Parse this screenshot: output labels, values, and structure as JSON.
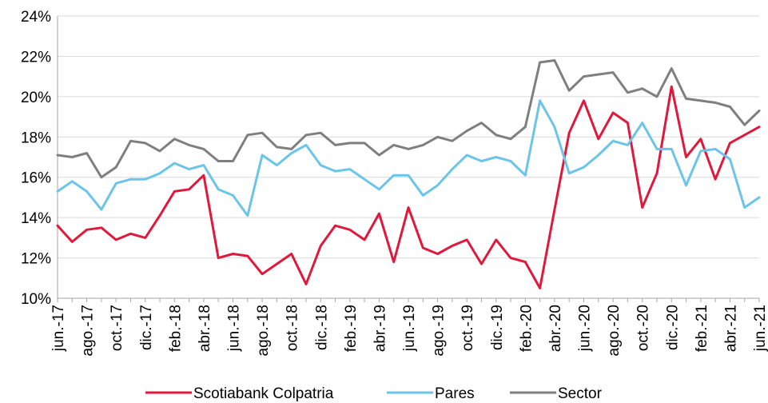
{
  "chart_data": {
    "type": "line",
    "title": "",
    "xlabel": "",
    "ylabel": "",
    "ylim": [
      0.1,
      0.24
    ],
    "y_ticks": [
      "10%",
      "12%",
      "14%",
      "16%",
      "18%",
      "20%",
      "22%",
      "24%"
    ],
    "x": [
      "jun.-17",
      "jul.-17",
      "ago.-17",
      "sep.-17",
      "oct.-17",
      "nov.-17",
      "dic.-17",
      "ene.-18",
      "feb.-18",
      "mar.-18",
      "abr.-18",
      "may.-18",
      "jun.-18",
      "jul.-18",
      "ago.-18",
      "sep.-18",
      "oct.-18",
      "nov.-18",
      "dic.-18",
      "ene.-19",
      "feb.-19",
      "mar.-19",
      "abr.-19",
      "may.-19",
      "jun.-19",
      "jul.-19",
      "ago.-19",
      "sep.-19",
      "oct.-19",
      "nov.-19",
      "dic.-19",
      "ene.-20",
      "feb.-20",
      "mar.-20",
      "abr.-20",
      "may.-20",
      "jun.-20",
      "jul.-20",
      "ago.-20",
      "sep.-20",
      "oct.-20",
      "nov.-20",
      "dic.-20",
      "ene.-21",
      "feb.-21",
      "mar.-21",
      "abr.-21",
      "may.-21",
      "jun.-21"
    ],
    "x_tick_labels": [
      "jun.-17",
      "ago.-17",
      "oct.-17",
      "dic.-17",
      "feb.-18",
      "abr.-18",
      "jun.-18",
      "ago.-18",
      "oct.-18",
      "dic.-18",
      "feb.-19",
      "abr.-19",
      "jun.-19",
      "ago.-19",
      "oct.-19",
      "dic.-19",
      "feb.-20",
      "abr.-20",
      "jun.-20",
      "ago.-20",
      "oct.-20",
      "dic.-20",
      "feb.-21",
      "abr.-21",
      "jun.-21"
    ],
    "legend_position": "bottom",
    "grid": "horizontal",
    "series": [
      {
        "name": "Scotiabank Colpatria",
        "color": "#e0183c",
        "values": [
          0.136,
          0.128,
          0.134,
          0.135,
          0.129,
          0.132,
          0.13,
          0.141,
          0.153,
          0.154,
          0.161,
          0.12,
          0.122,
          0.121,
          0.112,
          0.117,
          0.122,
          0.107,
          0.126,
          0.136,
          0.134,
          0.129,
          0.142,
          0.118,
          0.145,
          0.125,
          0.122,
          0.126,
          0.129,
          0.117,
          0.129,
          0.12,
          0.118,
          0.105,
          0.144,
          0.182,
          0.198,
          0.179,
          0.192,
          0.187,
          0.145,
          0.162,
          0.205,
          0.17,
          0.179,
          0.159,
          0.177,
          0.181,
          0.185
        ]
      },
      {
        "name": "Pares",
        "color": "#6ac5e9",
        "values": [
          0.153,
          0.158,
          0.153,
          0.144,
          0.157,
          0.159,
          0.159,
          0.162,
          0.167,
          0.164,
          0.166,
          0.154,
          0.151,
          0.141,
          0.171,
          0.166,
          0.172,
          0.176,
          0.166,
          0.163,
          0.164,
          0.159,
          0.154,
          0.161,
          0.161,
          0.151,
          0.156,
          0.164,
          0.171,
          0.168,
          0.17,
          0.168,
          0.161,
          0.198,
          0.185,
          0.162,
          0.165,
          0.171,
          0.178,
          0.176,
          0.187,
          0.174,
          0.174,
          0.156,
          0.173,
          0.174,
          0.169,
          0.145,
          0.15
        ]
      },
      {
        "name": "Sector",
        "color": "#7f7f7f",
        "values": [
          0.171,
          0.17,
          0.172,
          0.16,
          0.165,
          0.178,
          0.177,
          0.173,
          0.179,
          0.176,
          0.174,
          0.168,
          0.168,
          0.181,
          0.182,
          0.175,
          0.174,
          0.181,
          0.182,
          0.176,
          0.177,
          0.177,
          0.171,
          0.176,
          0.174,
          0.176,
          0.18,
          0.178,
          0.183,
          0.187,
          0.181,
          0.179,
          0.185,
          0.217,
          0.218,
          0.203,
          0.21,
          0.211,
          0.212,
          0.202,
          0.204,
          0.2,
          0.214,
          0.199,
          0.198,
          0.197,
          0.195,
          0.186,
          0.193
        ]
      }
    ]
  }
}
